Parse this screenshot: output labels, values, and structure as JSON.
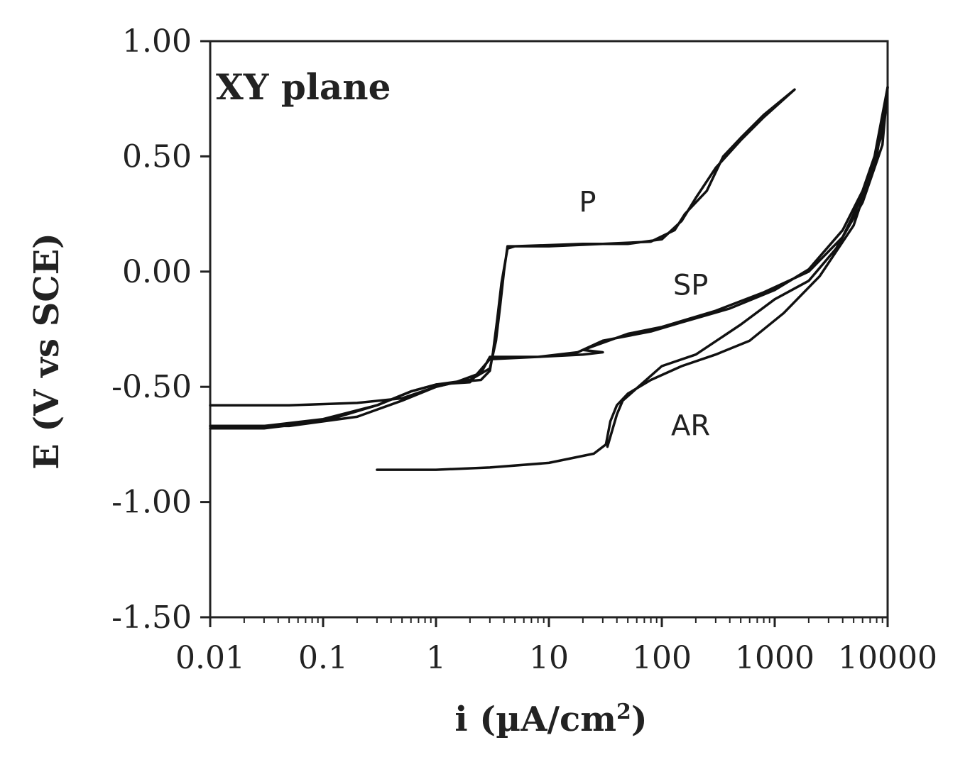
{
  "chart_data": {
    "type": "line",
    "title": "XY plane",
    "xlabel": "i (µA/cm",
    "xlabel_sup": "2",
    "xlabel_end": ")",
    "ylabel": "E (V vs SCE)",
    "x_scale": "log",
    "xlim": [
      0.01,
      10000
    ],
    "ylim": [
      -1.5,
      1.0
    ],
    "x_ticks": [
      0.01,
      0.1,
      1,
      10,
      100,
      1000,
      10000
    ],
    "x_tick_labels": [
      "0.01",
      "0.1",
      "1",
      "10",
      "100",
      "1000",
      "10000"
    ],
    "y_ticks": [
      1.0,
      0.5,
      0.0,
      -0.5,
      -1.0,
      -1.5
    ],
    "y_tick_labels": [
      "1.00",
      "0.50",
      "0.00",
      "-0.50",
      "-1.00",
      "-1.50"
    ],
    "grid": false,
    "legend": "none",
    "series": [
      {
        "name": "P",
        "points": [
          [
            0.01,
            -0.67
          ],
          [
            0.03,
            -0.67
          ],
          [
            0.1,
            -0.64
          ],
          [
            0.3,
            -0.58
          ],
          [
            0.6,
            -0.52
          ],
          [
            1.0,
            -0.49
          ],
          [
            2.0,
            -0.47
          ],
          [
            3.0,
            -0.42
          ],
          [
            3.4,
            -0.3
          ],
          [
            3.7,
            -0.15
          ],
          [
            4.0,
            0.0
          ],
          [
            4.3,
            0.11
          ],
          [
            10,
            0.11
          ],
          [
            30,
            0.12
          ],
          [
            80,
            0.13
          ],
          [
            130,
            0.18
          ],
          [
            160,
            0.25
          ],
          [
            250,
            0.35
          ],
          [
            350,
            0.5
          ],
          [
            500,
            0.58
          ],
          [
            800,
            0.68
          ],
          [
            1500,
            0.79
          ],
          [
            800,
            0.67
          ],
          [
            500,
            0.57
          ],
          [
            300,
            0.45
          ],
          [
            200,
            0.32
          ],
          [
            150,
            0.22
          ],
          [
            100,
            0.14
          ],
          [
            50,
            0.12
          ],
          [
            20,
            0.12
          ],
          [
            5,
            0.11
          ],
          [
            4.3,
            0.1
          ],
          [
            3.8,
            -0.05
          ],
          [
            3.5,
            -0.2
          ],
          [
            3.2,
            -0.35
          ],
          [
            3.0,
            -0.43
          ],
          [
            2.5,
            -0.47
          ],
          [
            1.5,
            -0.48
          ],
          [
            1.0,
            -0.5
          ],
          [
            0.5,
            -0.55
          ],
          [
            0.2,
            -0.57
          ],
          [
            0.05,
            -0.58
          ],
          [
            0.01,
            -0.58
          ]
        ]
      },
      {
        "name": "SP",
        "points": [
          [
            0.01,
            -0.68
          ],
          [
            0.03,
            -0.68
          ],
          [
            0.1,
            -0.65
          ],
          [
            0.3,
            -0.58
          ],
          [
            0.6,
            -0.52
          ],
          [
            1.0,
            -0.49
          ],
          [
            2.0,
            -0.48
          ],
          [
            3.0,
            -0.38
          ],
          [
            8,
            -0.37
          ],
          [
            20,
            -0.36
          ],
          [
            30,
            -0.35
          ],
          [
            20,
            -0.34
          ],
          [
            50,
            -0.27
          ],
          [
            100,
            -0.24
          ],
          [
            300,
            -0.17
          ],
          [
            800,
            -0.09
          ],
          [
            2000,
            0.0
          ],
          [
            4000,
            0.15
          ],
          [
            7000,
            0.4
          ],
          [
            10000,
            0.8
          ],
          [
            9000,
            0.6
          ],
          [
            6000,
            0.35
          ],
          [
            4000,
            0.18
          ],
          [
            2000,
            0.01
          ],
          [
            1000,
            -0.08
          ],
          [
            400,
            -0.16
          ],
          [
            150,
            -0.22
          ],
          [
            80,
            -0.26
          ],
          [
            30,
            -0.3
          ],
          [
            18,
            -0.35
          ],
          [
            8,
            -0.37
          ],
          [
            3.0,
            -0.37
          ],
          [
            2.5,
            -0.44
          ],
          [
            1.5,
            -0.48
          ],
          [
            1.0,
            -0.5
          ],
          [
            0.5,
            -0.56
          ],
          [
            0.2,
            -0.63
          ],
          [
            0.05,
            -0.67
          ],
          [
            0.01,
            -0.67
          ]
        ]
      },
      {
        "name": "AR",
        "points": [
          [
            0.3,
            -0.86
          ],
          [
            1,
            -0.86
          ],
          [
            3,
            -0.85
          ],
          [
            10,
            -0.83
          ],
          [
            25,
            -0.79
          ],
          [
            32,
            -0.75
          ],
          [
            35,
            -0.65
          ],
          [
            40,
            -0.58
          ],
          [
            50,
            -0.53
          ],
          [
            80,
            -0.47
          ],
          [
            150,
            -0.41
          ],
          [
            300,
            -0.36
          ],
          [
            600,
            -0.3
          ],
          [
            1200,
            -0.18
          ],
          [
            2500,
            -0.02
          ],
          [
            5000,
            0.2
          ],
          [
            8000,
            0.5
          ],
          [
            10000,
            0.8
          ],
          [
            9000,
            0.55
          ],
          [
            6000,
            0.3
          ],
          [
            3500,
            0.1
          ],
          [
            2000,
            -0.04
          ],
          [
            1000,
            -0.12
          ],
          [
            500,
            -0.23
          ],
          [
            200,
            -0.36
          ],
          [
            100,
            -0.41
          ],
          [
            45,
            -0.56
          ],
          [
            40,
            -0.62
          ],
          [
            33,
            -0.76
          ]
        ]
      }
    ],
    "series_label_positions": [
      {
        "name": "P",
        "x": 22,
        "y": 0.26
      },
      {
        "name": "SP",
        "x": 180,
        "y": -0.1
      },
      {
        "name": "AR",
        "x": 180,
        "y": -0.71
      }
    ]
  }
}
